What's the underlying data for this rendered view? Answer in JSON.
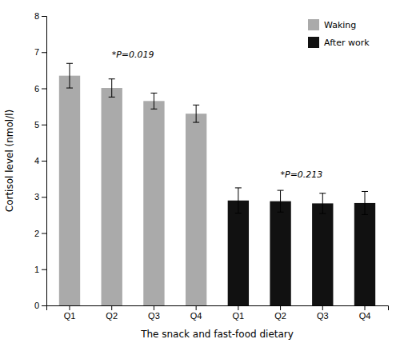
{
  "chart_data": {
    "type": "bar",
    "x_label": "The snack and fast-food dietary",
    "y_label": "Cortisol level (nmol/l)",
    "categories": [
      "Q1",
      "Q2",
      "Q3",
      "Q4",
      "Q1",
      "Q2",
      "Q3",
      "Q4"
    ],
    "series": [
      {
        "name": "Waking",
        "color": "#aaaaaa",
        "values": [
          6.35,
          6.01,
          5.65,
          5.3,
          null,
          null,
          null,
          null
        ],
        "errors": [
          0.34,
          0.25,
          0.22,
          0.24,
          null,
          null,
          null,
          null
        ],
        "annotation": {
          "text": "*P=0.019",
          "y": 6.8
        }
      },
      {
        "name": "After work",
        "color": "#111111",
        "values": [
          null,
          null,
          null,
          null,
          2.9,
          2.88,
          2.82,
          2.83
        ],
        "errors": [
          null,
          null,
          null,
          null,
          0.35,
          0.3,
          0.28,
          0.32
        ],
        "annotation": {
          "text": "*P=0.213",
          "y": 3.5
        }
      }
    ],
    "ylim": [
      0,
      8
    ],
    "yticks": [
      0,
      1,
      2,
      3,
      4,
      5,
      6,
      7,
      8
    ],
    "grid": false,
    "legend": "upper right"
  }
}
